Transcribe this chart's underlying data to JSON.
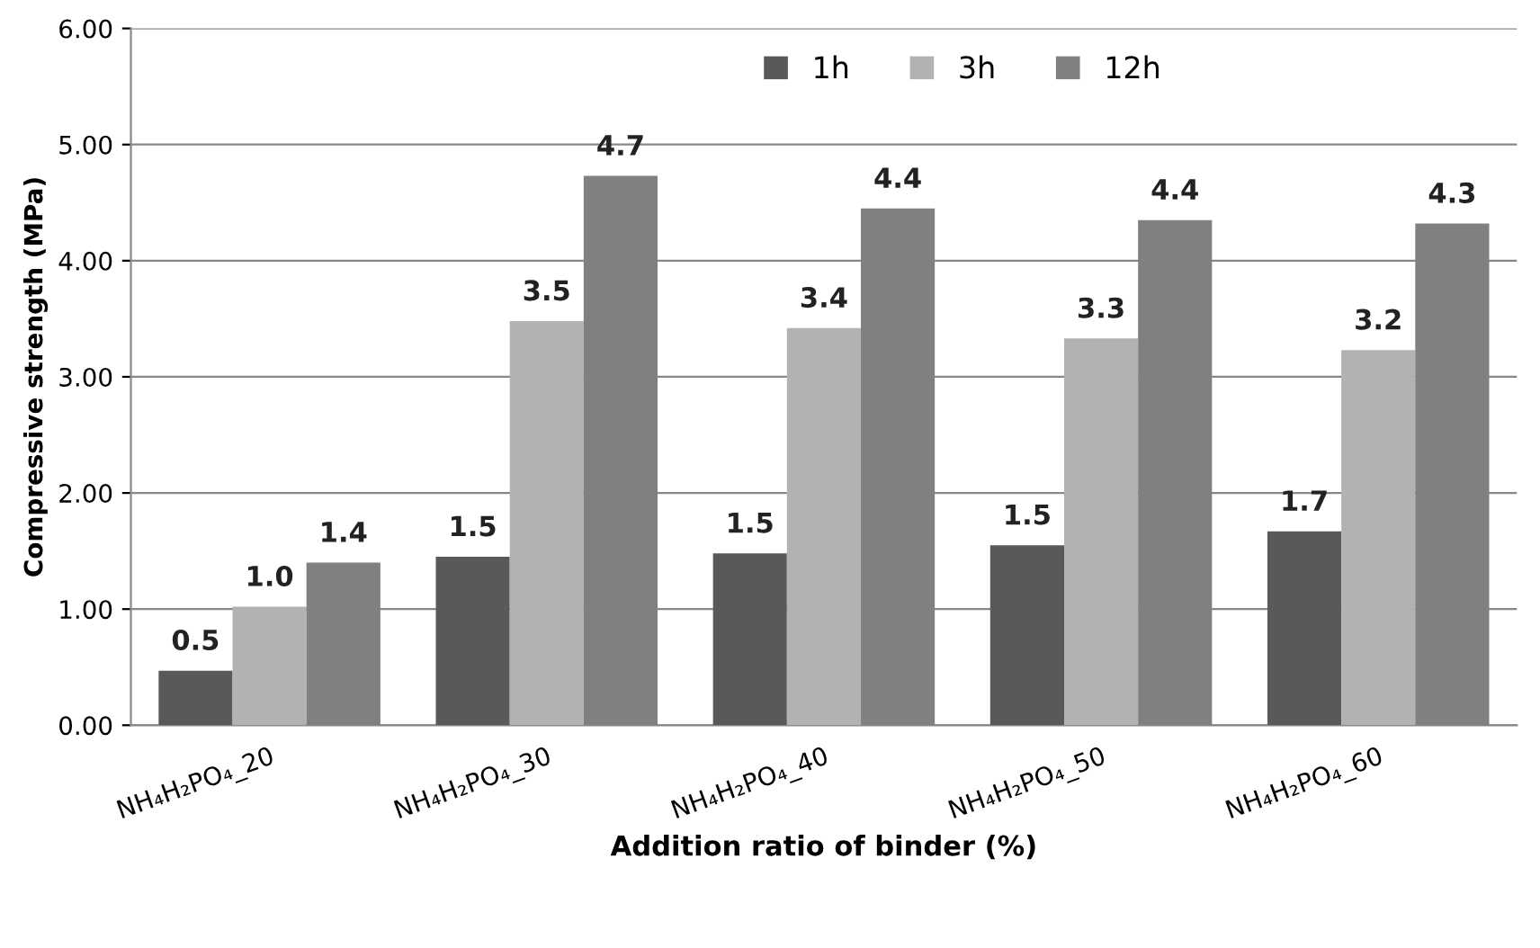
{
  "chart_data": {
    "type": "bar",
    "xlabel": "Addition ratio of binder (%)",
    "ylabel": "Compressive strength (MPa)",
    "categories": [
      "NH₄H₂PO₄_20",
      "NH₄H₂PO₄_30",
      "NH₄H₂PO₄_40",
      "NH₄H₂PO₄_50",
      "NH₄H₂PO₄_60"
    ],
    "series": [
      {
        "name": "1h",
        "color": "#595959",
        "values": [
          0.47,
          1.45,
          1.48,
          1.55,
          1.67
        ],
        "value_labels": [
          "0.5",
          "1.5",
          "1.5",
          "1.5",
          "1.7"
        ]
      },
      {
        "name": "3h",
        "color": "#b2b2b2",
        "values": [
          1.02,
          3.48,
          3.42,
          3.33,
          3.23
        ],
        "value_labels": [
          "1.0",
          "3.5",
          "3.4",
          "3.3",
          "3.2"
        ]
      },
      {
        "name": "12h",
        "color": "#808080",
        "values": [
          1.4,
          4.73,
          4.45,
          4.35,
          4.32
        ],
        "value_labels": [
          "1.4",
          "4.7",
          "4.4",
          "4.4",
          "4.3"
        ]
      }
    ],
    "ylim": [
      0,
      6
    ],
    "yticks": [
      {
        "value": 0,
        "label": "0.00"
      },
      {
        "value": 1,
        "label": "1.00"
      },
      {
        "value": 2,
        "label": "2.00"
      },
      {
        "value": 3,
        "label": "3.00"
      },
      {
        "value": 4,
        "label": "4.00"
      },
      {
        "value": 5,
        "label": "5.00"
      },
      {
        "value": 6,
        "label": "6.00"
      }
    ],
    "grid": "y",
    "legend": "top"
  }
}
